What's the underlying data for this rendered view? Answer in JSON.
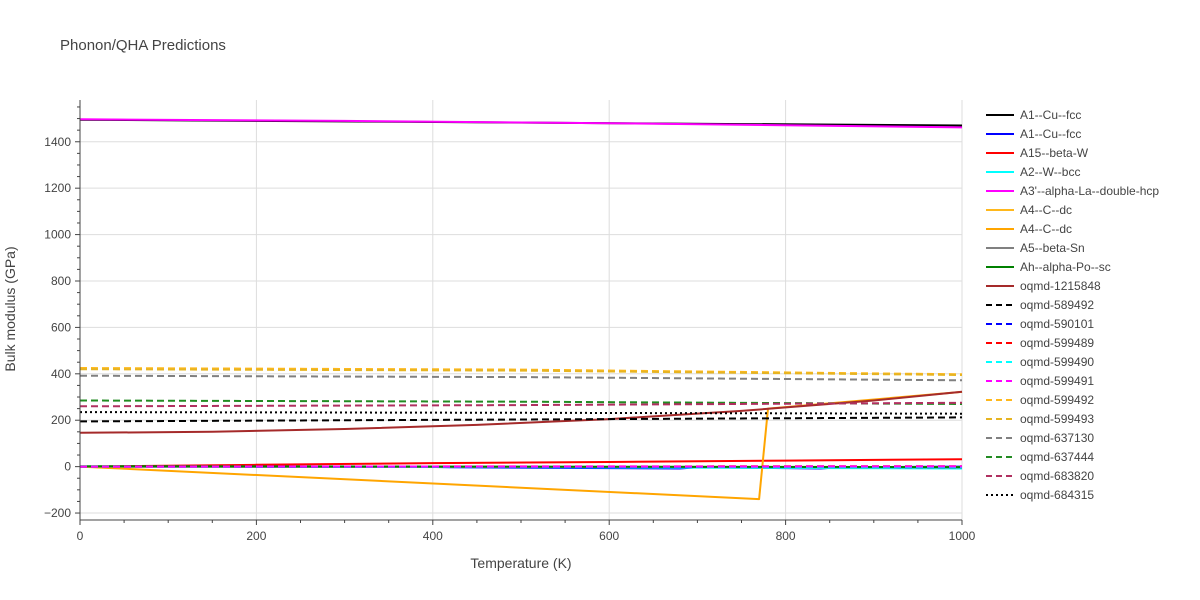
{
  "chart_data": {
    "type": "line",
    "title": "Phonon/QHA Predictions",
    "xlabel": "Temperature (K)",
    "ylabel": "Bulk modulus (GPa)",
    "xlim": [
      0,
      1000
    ],
    "ylim": [
      -230,
      1580
    ],
    "xticks": [
      0,
      200,
      400,
      600,
      800,
      1000
    ],
    "yticks": [
      -200,
      0,
      200,
      400,
      600,
      800,
      1000,
      1200,
      1400
    ],
    "grid": true,
    "legend_position": "right",
    "series": [
      {
        "name": "A1--Cu--fcc",
        "color": "#000000",
        "dash": "solid",
        "x": [
          0,
          1000
        ],
        "y": [
          1495,
          1470
        ]
      },
      {
        "name": "A1--Cu--fcc",
        "color": "#0000ff",
        "dash": "solid",
        "x": [
          0,
          380,
          420,
          680,
          700,
          840,
          860,
          1000
        ],
        "y": [
          0,
          0,
          -3,
          -8,
          -3,
          -8,
          -3,
          0
        ]
      },
      {
        "name": "A15--beta-W",
        "color": "#ff0000",
        "dash": "solid",
        "x": [
          0,
          200,
          400,
          600,
          800,
          1000
        ],
        "y": [
          0,
          8,
          15,
          20,
          26,
          32
        ]
      },
      {
        "name": "A2--W--bcc",
        "color": "#00ffff",
        "dash": "solid",
        "x": [
          0,
          500,
          1000
        ],
        "y": [
          0,
          -2,
          -8
        ]
      },
      {
        "name": "A3'--alpha-La--double-hcp",
        "color": "#ff00ff",
        "dash": "solid",
        "x": [
          0,
          300,
          600,
          1000
        ],
        "y": [
          1497,
          1490,
          1480,
          1462
        ]
      },
      {
        "name": "A4--C--dc",
        "color": "#ffb81c",
        "dash": "solid",
        "x": [
          0,
          1000
        ],
        "y": [
          0,
          -2
        ]
      },
      {
        "name": "A4--C--dc",
        "color": "#ffa500",
        "dash": "solid",
        "x": [
          0,
          770,
          780,
          1000
        ],
        "y": [
          0,
          -140,
          250,
          322
        ]
      },
      {
        "name": "A5--beta-Sn",
        "color": "#808080",
        "dash": "solid",
        "x": [
          0,
          1000
        ],
        "y": [
          0,
          -3
        ]
      },
      {
        "name": "Ah--alpha-Po--sc",
        "color": "#008000",
        "dash": "solid",
        "x": [
          0,
          500,
          1000
        ],
        "y": [
          2,
          0,
          -2
        ]
      },
      {
        "name": "oqmd-1215848",
        "color": "#a52a2a",
        "dash": "solid",
        "x": [
          0,
          150,
          300,
          450,
          600,
          750,
          900,
          1000
        ],
        "y": [
          146,
          150,
          162,
          180,
          205,
          240,
          285,
          323
        ]
      },
      {
        "name": "oqmd-589492",
        "color": "#000000",
        "dash": "dash",
        "x": [
          0,
          500,
          1000
        ],
        "y": [
          195,
          203,
          212
        ]
      },
      {
        "name": "oqmd-590101",
        "color": "#0000ff",
        "dash": "dash",
        "x": [
          0,
          1000
        ],
        "y": [
          0,
          -2
        ]
      },
      {
        "name": "oqmd-599489",
        "color": "#ff0000",
        "dash": "dash",
        "x": [
          0,
          1000
        ],
        "y": [
          0,
          2
        ]
      },
      {
        "name": "oqmd-599490",
        "color": "#00ffff",
        "dash": "dash",
        "x": [
          0,
          1000
        ],
        "y": [
          0,
          -1
        ]
      },
      {
        "name": "oqmd-599491",
        "color": "#ff00ff",
        "dash": "dash",
        "x": [
          0,
          1000
        ],
        "y": [
          0,
          1
        ]
      },
      {
        "name": "oqmd-599492",
        "color": "#ffb81c",
        "dash": "dash",
        "x": [
          0,
          500,
          1000
        ],
        "y": [
          425,
          418,
          398
        ]
      },
      {
        "name": "oqmd-599493",
        "color": "#e6b422",
        "dash": "dash",
        "x": [
          0,
          500,
          1000
        ],
        "y": [
          420,
          414,
          395
        ]
      },
      {
        "name": "oqmd-637130",
        "color": "#808080",
        "dash": "dash",
        "x": [
          0,
          500,
          1000
        ],
        "y": [
          392,
          386,
          372
        ]
      },
      {
        "name": "oqmd-637444",
        "color": "#228b22",
        "dash": "dash",
        "x": [
          0,
          500,
          1000
        ],
        "y": [
          285,
          280,
          270
        ]
      },
      {
        "name": "oqmd-683820",
        "color": "#b03060",
        "dash": "dash",
        "x": [
          0,
          500,
          1000
        ],
        "y": [
          260,
          265,
          275
        ]
      },
      {
        "name": "oqmd-684315",
        "color": "#000000",
        "dash": "dot",
        "x": [
          0,
          500,
          1000
        ],
        "y": [
          235,
          232,
          228
        ]
      }
    ]
  }
}
